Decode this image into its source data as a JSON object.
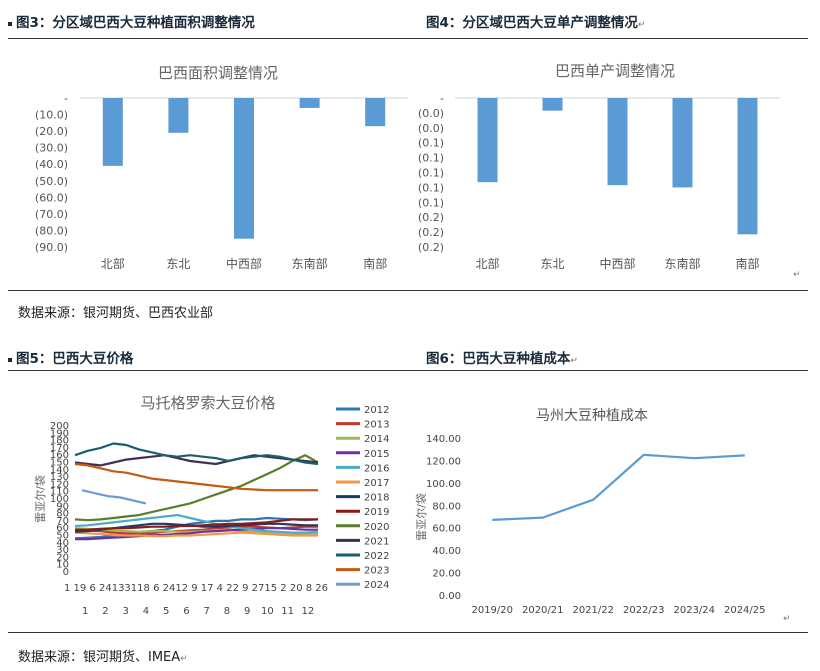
{
  "figures": {
    "fig3_title": "图3：分区域巴西大豆种植面积调整情况",
    "fig4_title": "图4：分区域巴西大豆单产调整情况",
    "fig5_title": "图5：巴西大豆价格",
    "fig6_title": "图6：巴西大豆种植成本",
    "source_top": "数据来源：银河期货、巴西农业部",
    "source_bottom": "数据来源：银河期货、IMEA",
    "return_mark": "↵"
  },
  "chart_data": [
    {
      "type": "bar",
      "title": "巴西面积调整情况",
      "categories": [
        "北部",
        "东北",
        "中西部",
        "东南部",
        "南部"
      ],
      "values": [
        -41,
        -21,
        -85,
        -6,
        -17
      ],
      "ylim": [
        -90,
        0
      ],
      "yticks": [
        "-",
        "(10.0)",
        "(20.0)",
        "(30.0)",
        "(40.0)",
        "(50.0)",
        "(60.0)",
        "(70.0)",
        "(80.0)",
        "(90.0)"
      ],
      "grid": false,
      "color": "#5b9bd5"
    },
    {
      "type": "bar",
      "title": "巴西单产调整情况",
      "categories": [
        "北部",
        "东北",
        "中西部",
        "东南部",
        "南部"
      ],
      "values": [
        -0.113,
        -0.017,
        -0.117,
        -0.12,
        -0.183
      ],
      "ylim": [
        -0.2,
        0
      ],
      "yticks": [
        "-",
        "(0.0)",
        "(0.0)",
        "(0.1)",
        "(0.1)",
        "(0.1)",
        "(0.1)",
        "(0.1)",
        "(0.2)",
        "(0.2)",
        "(0.2)"
      ],
      "grid": false,
      "color": "#5b9bd5"
    },
    {
      "type": "line",
      "title": "马托格罗索大豆价格",
      "ylabel": "雷亚尔/袋",
      "ylim": [
        0,
        200
      ],
      "yticks": [
        0,
        10,
        20,
        30,
        40,
        50,
        60,
        70,
        80,
        90,
        100,
        110,
        120,
        130,
        140,
        150,
        160,
        170,
        180,
        190,
        200
      ],
      "xticks_top": "1 19 6 24133118 6 2412 9 17 4 22 9 2715 2 20 8 26",
      "xticks_month": [
        "1",
        "2",
        "3",
        "4",
        "5",
        "6",
        "7",
        "8",
        "9",
        "10",
        "11",
        "12"
      ],
      "legend_position": "right",
      "series": [
        {
          "name": "2012",
          "color": "#2e75b6",
          "values": [
            46,
            47,
            48,
            50,
            52,
            54,
            56,
            58,
            62,
            66,
            68,
            70,
            70,
            72,
            72,
            74,
            73,
            72,
            71,
            72
          ]
        },
        {
          "name": "2013",
          "color": "#c0392b",
          "values": [
            58,
            57,
            56,
            54,
            53,
            52,
            53,
            55,
            56,
            57,
            58,
            60,
            61,
            62,
            62,
            61,
            60,
            61,
            62,
            62
          ]
        },
        {
          "name": "2014",
          "color": "#9bbb59",
          "values": [
            60,
            59,
            58,
            57,
            56,
            55,
            56,
            56,
            55,
            55,
            56,
            57,
            58,
            56,
            55,
            54,
            53,
            52,
            52,
            52
          ]
        },
        {
          "name": "2015",
          "color": "#7030a0",
          "values": [
            45,
            45,
            46,
            47,
            48,
            49,
            50,
            51,
            52,
            53,
            55,
            56,
            57,
            58,
            59,
            60,
            60,
            59,
            58,
            58
          ]
        },
        {
          "name": "2016",
          "color": "#4bacc6",
          "values": [
            63,
            64,
            66,
            68,
            70,
            72,
            74,
            76,
            78,
            74,
            70,
            66,
            62,
            60,
            58,
            56,
            55,
            54,
            54,
            55
          ]
        },
        {
          "name": "2017",
          "color": "#f79646",
          "values": [
            54,
            53,
            52,
            51,
            50,
            50,
            49,
            49,
            50,
            50,
            51,
            52,
            53,
            54,
            53,
            52,
            51,
            50,
            50,
            50
          ]
        },
        {
          "name": "2018",
          "color": "#1f3864",
          "values": [
            55,
            56,
            58,
            60,
            62,
            64,
            66,
            66,
            65,
            64,
            62,
            62,
            63,
            64,
            65,
            66,
            66,
            65,
            64,
            64
          ]
        },
        {
          "name": "2019",
          "color": "#8b1a1a",
          "values": [
            58,
            58,
            59,
            60,
            60,
            61,
            62,
            62,
            63,
            63,
            64,
            65,
            66,
            66,
            67,
            68,
            70,
            72,
            72,
            72
          ]
        },
        {
          "name": "2020",
          "color": "#5a7d2a",
          "values": [
            72,
            71,
            72,
            74,
            76,
            78,
            82,
            86,
            90,
            94,
            100,
            106,
            112,
            118,
            126,
            134,
            142,
            152,
            160,
            150
          ]
        },
        {
          "name": "2021",
          "color": "#403152",
          "values": [
            150,
            148,
            146,
            150,
            154,
            156,
            158,
            160,
            156,
            152,
            150,
            148,
            152,
            156,
            160,
            158,
            156,
            154,
            152,
            150
          ]
        },
        {
          "name": "2022",
          "color": "#17606e",
          "values": [
            160,
            166,
            170,
            176,
            174,
            168,
            164,
            160,
            158,
            160,
            158,
            156,
            152,
            156,
            158,
            160,
            158,
            154,
            150,
            148
          ]
        },
        {
          "name": "2023",
          "color": "#c55a11",
          "values": [
            148,
            146,
            142,
            138,
            136,
            132,
            128,
            126,
            124,
            122,
            120,
            118,
            116,
            114,
            113,
            112,
            112,
            112,
            112,
            112
          ]
        },
        {
          "name": "2024",
          "color": "#6f9bd4",
          "values": [
            112,
            108,
            104,
            102,
            98,
            94
          ]
        }
      ]
    },
    {
      "type": "line",
      "title": "马州大豆种植成本",
      "ylabel": "雷亚尔/袋",
      "categories": [
        "2019/20",
        "2020/21",
        "2021/22",
        "2022/23",
        "2023/24",
        "2024/25"
      ],
      "values": [
        67,
        69,
        85,
        125,
        122,
        124.5
      ],
      "ylim": [
        0,
        140
      ],
      "yticks": [
        "0.00",
        "20.00",
        "40.00",
        "60.00",
        "80.00",
        "100.00",
        "120.00",
        "140.00"
      ],
      "grid": false,
      "color": "#5b9bd5"
    }
  ]
}
